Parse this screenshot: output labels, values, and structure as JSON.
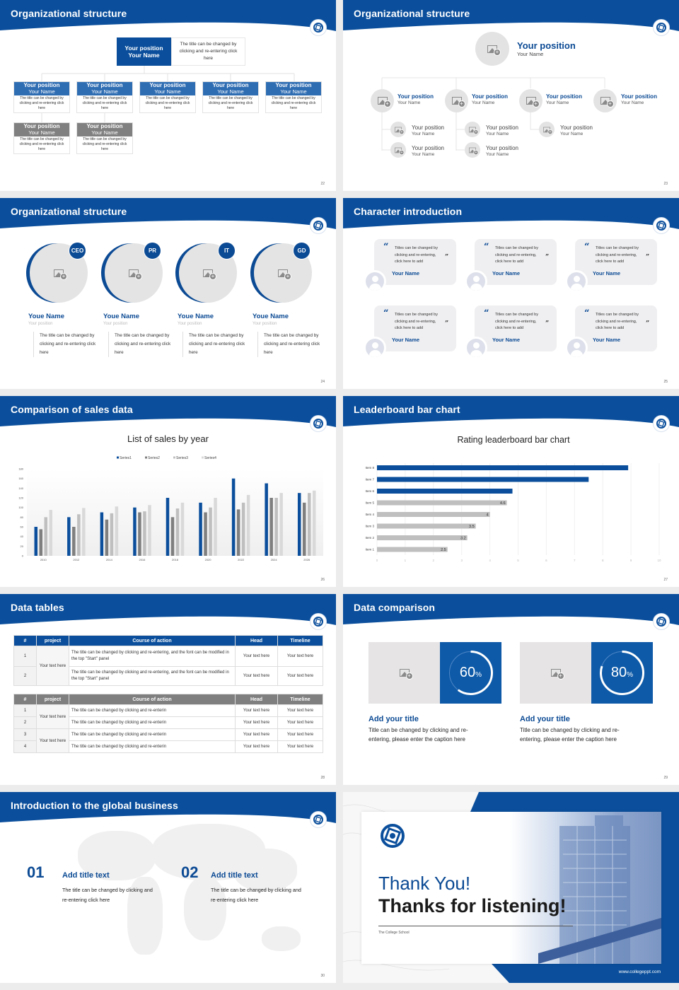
{
  "colors": {
    "brand_blue": "#0b4f9c",
    "light_blue": "#2f6db3",
    "gray": "#7f7f7f",
    "light_gray": "#bfbfbf"
  },
  "slide22": {
    "title": "Organizational structure",
    "page": "22",
    "top": {
      "position": "Your position",
      "name": "Your Name",
      "desc": "The title can be changed by clicking and re-entering click here"
    },
    "boxes": [
      {
        "position": "Your position",
        "name": "Your Name",
        "desc": "The title can be changed by clicking and re-entering click here"
      },
      {
        "position": "Your position",
        "name": "Your Name",
        "desc": "The title can be changed by clicking and re-entering click here"
      },
      {
        "position": "Your position",
        "name": "Your Name",
        "desc": "The title can be changed by clicking and re-entering click here"
      },
      {
        "position": "Your position",
        "name": "Your Name",
        "desc": "The title can be changed by clicking and re-entering click here"
      },
      {
        "position": "Your position",
        "name": "Your Name",
        "desc": "The title can be changed by clicking and re-entering click here"
      },
      {
        "position": "Your position",
        "name": "Your Name",
        "desc": "The title can be changed by clicking and re-entering click here"
      },
      {
        "position": "Your position",
        "name": "Your Name",
        "desc": "The title can be changed by clicking and re-entering click here"
      }
    ]
  },
  "slide23": {
    "title": "Organizational structure",
    "page": "23",
    "top": {
      "position": "Your position",
      "name": "Your Name"
    },
    "level2": [
      {
        "position": "Your position",
        "name": "Your Name"
      },
      {
        "position": "Your position",
        "name": "Your Name"
      },
      {
        "position": "Your position",
        "name": "Your Name"
      },
      {
        "position": "Your position",
        "name": "Your Name"
      }
    ],
    "level3": [
      {
        "position": "Your position",
        "name": "Your Name"
      },
      {
        "position": "Your position",
        "name": "Your Name"
      },
      {
        "position": "Your position",
        "name": "Your Name"
      },
      {
        "position": "Your position",
        "name": "Your Name"
      },
      {
        "position": "Your position",
        "name": "Your Name"
      }
    ]
  },
  "slide24": {
    "title": "Organizational structure",
    "page": "24",
    "members": [
      {
        "badge": "CEO",
        "name": "Youe Name",
        "position": "Your position",
        "desc": "The title can be changed by clicking and re-entering click here"
      },
      {
        "badge": "PR",
        "name": "Youe Name",
        "position": "Your position",
        "desc": "The title can be changed by clicking and re-entering click here"
      },
      {
        "badge": "IT",
        "name": "Youe Name",
        "position": "Your position",
        "desc": "The title can be changed by clicking and re-entering click here"
      },
      {
        "badge": "GD",
        "name": "Youe Name",
        "position": "Your position",
        "desc": "The title can be changed by clicking and re-entering click here"
      }
    ]
  },
  "slide25": {
    "title": "Character introduction",
    "page": "25",
    "cards": [
      {
        "quote": "Titles can be changed by clicking and re-entering, click here to add",
        "name": "Your Name"
      },
      {
        "quote": "Titles can be changed by clicking and re-entering, click here to add",
        "name": "Your Name"
      },
      {
        "quote": "Titles can be changed by clicking and re-entering, click here to add",
        "name": "Your Name"
      },
      {
        "quote": "Titles can be changed by clicking and re-entering, click here to add",
        "name": "Your Name"
      },
      {
        "quote": "Titles can be changed by clicking and re-entering, click here to add",
        "name": "Your Name"
      },
      {
        "quote": "Titles can be changed by clicking and re-entering, click here to add",
        "name": "Your Name"
      }
    ]
  },
  "slide26": {
    "title": "Comparison of sales data",
    "page": "26"
  },
  "slide27": {
    "title": "Leaderboard bar chart",
    "page": "27"
  },
  "chart_data": [
    {
      "type": "bar",
      "title": "List of sales by year",
      "categories": [
        "2010",
        "2012",
        "2014",
        "2016",
        "2018",
        "2020",
        "2022",
        "2024",
        "2026"
      ],
      "series": [
        {
          "name": "Series1",
          "color": "#0b4f9c",
          "values": [
            60,
            80,
            90,
            100,
            120,
            110,
            160,
            150,
            130
          ]
        },
        {
          "name": "Series2",
          "color": "#7f7f7f",
          "values": [
            55,
            60,
            75,
            90,
            80,
            90,
            96,
            120,
            110
          ]
        },
        {
          "name": "Series3",
          "color": "#bfbfbf",
          "values": [
            80,
            86,
            88,
            92,
            98,
            100,
            110,
            120,
            130
          ]
        },
        {
          "name": "Series4",
          "color": "#d9d9d9",
          "values": [
            95,
            99,
            102,
            105,
            110,
            120,
            126,
            130,
            135
          ]
        }
      ],
      "ylim": [
        0,
        180
      ],
      "yticks": [
        "0",
        "20",
        "40",
        "60",
        "80",
        "100",
        "120",
        "140",
        "160",
        "180"
      ],
      "legend": "top",
      "grid": false
    },
    {
      "type": "bar",
      "orientation": "horizontal",
      "title": "Rating leaderboard bar chart",
      "categories": [
        "Item 1",
        "Item 2",
        "Item 3",
        "Item 4",
        "Item 5",
        "Item 6",
        "Item 7",
        "Item 8"
      ],
      "values": [
        2.5,
        3.2,
        3.5,
        4,
        4.6,
        4.8,
        7.5,
        8.9
      ],
      "labels": [
        "2.5",
        "3.2",
        "3.5",
        "4",
        "4.6",
        "",
        "",
        ""
      ],
      "highlight_color": "#0b4f9c",
      "base_color": "#bfbfbf",
      "xlim": [
        0,
        10
      ],
      "xticks": [
        "0",
        "1",
        "2",
        "3",
        "4",
        "5",
        "6",
        "7",
        "8",
        "9",
        "10"
      ],
      "grid": true
    }
  ],
  "slide28": {
    "title": "Data tables",
    "page": "28",
    "headers": [
      "#",
      "project",
      "Course of action",
      "Head",
      "Timeline"
    ],
    "table1": {
      "project": "Your text here",
      "rows": [
        {
          "num": "1",
          "action": "The title can be changed by clicking and re-entering, and the font can be modified in the top \"Start\" panel",
          "head": "Your text here",
          "timeline": "Your text here"
        },
        {
          "num": "2",
          "action": "The title can be changed by clicking and re-entering, and the font can be modified in the top \"Start\" panel",
          "head": "Your text here",
          "timeline": "Your text here"
        }
      ]
    },
    "table2": {
      "projects": [
        "Your text here",
        "Your text here"
      ],
      "rows": [
        {
          "num": "1",
          "action": "The title can be changed by clicking and re-enterin",
          "head": "Your text here",
          "timeline": "Your text here"
        },
        {
          "num": "2",
          "action": "The title can be changed by clicking and re-enterin",
          "head": "Your text here",
          "timeline": "Your text here"
        },
        {
          "num": "3",
          "action": "The title can be changed by clicking and re-enterin",
          "head": "Your text here",
          "timeline": "Your text here"
        },
        {
          "num": "4",
          "action": "The title can be changed by clicking and re-enterin",
          "head": "Your text here",
          "timeline": "Your text here"
        }
      ]
    }
  },
  "slide29": {
    "title": "Data comparison",
    "page": "29",
    "items": [
      {
        "percent": 60,
        "value": "60",
        "unit": "%",
        "title": "Add your title",
        "text": "Title can be changed by clicking and re-entering, please enter the caption here"
      },
      {
        "percent": 80,
        "value": "80",
        "unit": "%",
        "title": "Add your title",
        "text": "Title can be changed by clicking and re-entering, please enter the caption here"
      }
    ]
  },
  "slide30": {
    "title": "Introduction to the global business",
    "page": "30",
    "items": [
      {
        "num": "01",
        "title": "Add title text",
        "text": "The title can be changed by clicking and re-entering click here"
      },
      {
        "num": "02",
        "title": "Add title text",
        "text": "The title can be changed by clicking and re-entering click here"
      }
    ]
  },
  "slide31": {
    "line1": "Thank You!",
    "line2": "Thanks for listening!",
    "school": "The College School",
    "url": "www.collegeppt.com"
  }
}
